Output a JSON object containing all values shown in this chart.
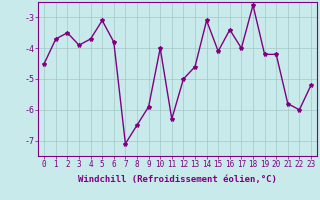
{
  "x": [
    0,
    1,
    2,
    3,
    4,
    5,
    6,
    7,
    8,
    9,
    10,
    11,
    12,
    13,
    14,
    15,
    16,
    17,
    18,
    19,
    20,
    21,
    22,
    23
  ],
  "y": [
    -4.5,
    -3.7,
    -3.5,
    -3.9,
    -3.7,
    -3.1,
    -3.8,
    -7.1,
    -6.5,
    -5.9,
    -4.0,
    -6.3,
    -5.0,
    -4.6,
    -3.1,
    -4.1,
    -3.4,
    -4.0,
    -2.6,
    -4.2,
    -4.2,
    -5.8,
    -6.0,
    -5.2
  ],
  "line_color": "#800080",
  "marker": "*",
  "markersize": 3,
  "bg_color": "#c8eaea",
  "grid_color": "#a0c8c8",
  "xlabel": "Windchill (Refroidissement éolien,°C)",
  "ylim": [
    -7.5,
    -2.5
  ],
  "xlim": [
    -0.5,
    23.5
  ],
  "yticks": [
    -7,
    -6,
    -5,
    -4,
    -3
  ],
  "xtick_labels": [
    "0",
    "1",
    "2",
    "3",
    "4",
    "5",
    "6",
    "7",
    "8",
    "9",
    "10",
    "11",
    "12",
    "13",
    "14",
    "15",
    "16",
    "17",
    "18",
    "19",
    "20",
    "21",
    "22",
    "23"
  ],
  "axis_color": "#800080",
  "tick_color": "#800080",
  "label_color": "#800080",
  "linewidth": 1.0,
  "tick_fontsize": 5.5,
  "ylabel_fontsize": 6.5,
  "xlabel_fontsize": 6.5
}
